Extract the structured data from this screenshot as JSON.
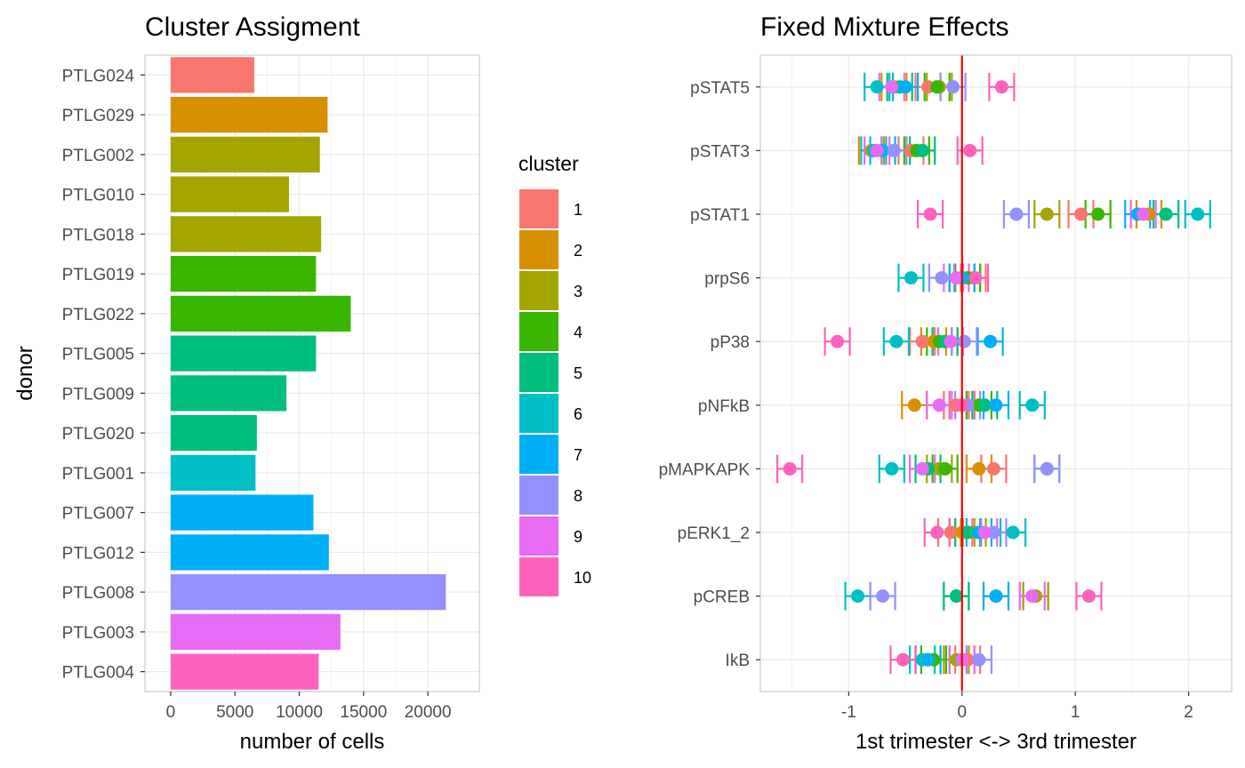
{
  "colors": {
    "1": "#F8766D",
    "2": "#D89000",
    "3": "#A3A500",
    "4": "#39B600",
    "5": "#00BF7D",
    "6": "#00BFC4",
    "7": "#00B0F6",
    "8": "#9590FF",
    "9": "#E76BF3",
    "10": "#FF62BC",
    "zero_line": "#FF0000",
    "grid": "#EBEBEB",
    "panel_border": "#CCCCCC"
  },
  "chart_data": [
    {
      "type": "bar",
      "orientation": "horizontal",
      "title": "Cluster Assigment",
      "xlabel": "number of cells",
      "ylabel": "donor",
      "xlim": [
        -2000,
        24000
      ],
      "xticks": [
        0,
        5000,
        10000,
        15000,
        20000
      ],
      "xtick_labels": [
        "0",
        "5000",
        "10000",
        "15000",
        "20000"
      ],
      "grid": true,
      "categories": [
        "PTLG024",
        "PTLG029",
        "PTLG002",
        "PTLG010",
        "PTLG018",
        "PTLG019",
        "PTLG022",
        "PTLG005",
        "PTLG009",
        "PTLG020",
        "PTLG001",
        "PTLG007",
        "PTLG012",
        "PTLG008",
        "PTLG003",
        "PTLG004"
      ],
      "values": [
        6500,
        12200,
        11600,
        9200,
        11700,
        11300,
        14000,
        11300,
        9000,
        6700,
        6600,
        11100,
        12300,
        21400,
        13200,
        11500
      ],
      "cluster": [
        "1",
        "2",
        "3",
        "3",
        "3",
        "4",
        "4",
        "5",
        "5",
        "5",
        "6",
        "7",
        "7",
        "8",
        "9",
        "10"
      ],
      "legend": {
        "title": "cluster",
        "placement": "right",
        "entries": [
          "1",
          "2",
          "3",
          "4",
          "5",
          "6",
          "7",
          "8",
          "9",
          "10"
        ]
      }
    },
    {
      "type": "errorbar-points",
      "title": "Fixed Mixture Effects",
      "xlabel": "1st trimester <-> 3rd trimester",
      "ylabel": "",
      "xlim": [
        -1.78,
        2.38
      ],
      "xticks": [
        -1,
        0,
        1,
        2
      ],
      "xtick_labels": [
        "-1",
        "0",
        "1",
        "2"
      ],
      "reference_line": 0,
      "grid": true,
      "categories": [
        "pSTAT5",
        "pSTAT3",
        "pSTAT1",
        "prpS6",
        "pP38",
        "pNFkB",
        "pMAPKAPK",
        "pERK1_2",
        "pCREB",
        "IkB"
      ],
      "series": [
        {
          "cluster": "1",
          "values": [
            -0.3,
            -0.45,
            1.05,
            0.1,
            -0.35,
            -0.05,
            0.28,
            -0.1,
            0.65,
            0.05
          ]
        },
        {
          "cluster": "2",
          "values": [
            -0.6,
            -0.8,
            1.65,
            0.0,
            -0.25,
            -0.42,
            0.15,
            0.0,
            0.3,
            0.0
          ]
        },
        {
          "cluster": "3",
          "values": [
            -0.2,
            -0.6,
            0.75,
            0.05,
            -0.15,
            0.0,
            -0.2,
            0.1,
            0.65,
            -0.05
          ]
        },
        {
          "cluster": "4",
          "values": [
            -0.22,
            -0.4,
            1.2,
            0.05,
            -0.2,
            0.15,
            -0.15,
            0.05,
            -0.05,
            -0.25
          ]
        },
        {
          "cluster": "5",
          "values": [
            -0.55,
            -0.35,
            1.8,
            0.0,
            -0.15,
            0.2,
            -0.3,
            0.05,
            -0.05,
            -0.3
          ]
        },
        {
          "cluster": "6",
          "values": [
            -0.75,
            -0.78,
            2.08,
            -0.45,
            -0.58,
            0.62,
            -0.62,
            0.45,
            -0.92,
            -0.35
          ]
        },
        {
          "cluster": "7",
          "values": [
            -0.5,
            -0.7,
            1.55,
            0.0,
            0.25,
            0.3,
            0.75,
            0.15,
            0.3,
            -0.3
          ]
        },
        {
          "cluster": "8",
          "values": [
            -0.08,
            -0.6,
            0.48,
            -0.18,
            0.02,
            0.05,
            0.75,
            0.28,
            -0.7,
            0.15
          ]
        },
        {
          "cluster": "9",
          "values": [
            -0.62,
            -0.75,
            1.6,
            -0.05,
            -0.1,
            -0.2,
            -0.35,
            0.2,
            0.62,
            0.0
          ]
        },
        {
          "cluster": "10",
          "values": [
            0.35,
            0.07,
            -0.28,
            0.12,
            -1.1,
            0.0,
            -1.52,
            -0.22,
            1.12,
            -0.52
          ]
        }
      ]
    }
  ]
}
